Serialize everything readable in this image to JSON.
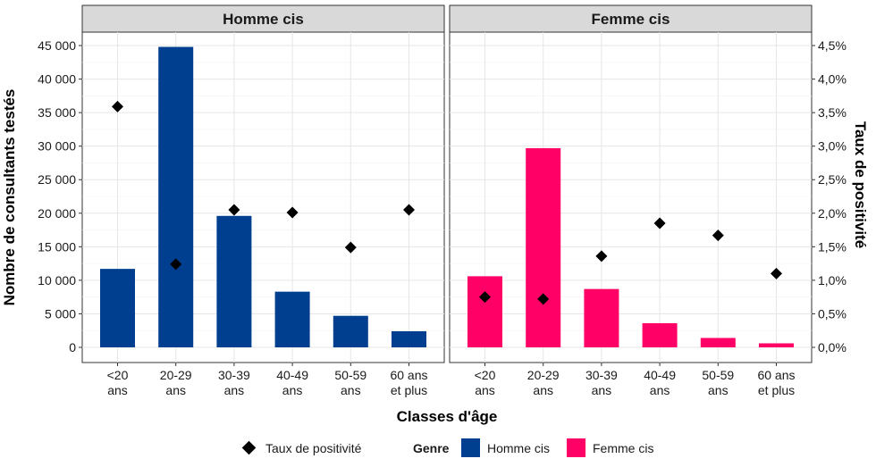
{
  "chart_data": {
    "type": "bar",
    "xlabel": "Classes d'âge",
    "ylabel": "Nombre de consultants testés",
    "y2label": "Taux de positivité",
    "categories": [
      [
        "<20",
        "ans"
      ],
      [
        "20-29",
        "ans"
      ],
      [
        "30-39",
        "ans"
      ],
      [
        "40-49",
        "ans"
      ],
      [
        "50-59",
        "ans"
      ],
      [
        "60 ans",
        "et plus"
      ]
    ],
    "ylim": [
      0,
      47000
    ],
    "yticks": [
      0,
      5000,
      10000,
      15000,
      20000,
      25000,
      30000,
      35000,
      40000,
      45000
    ],
    "ytick_labels": [
      "0",
      "5 000",
      "10 000",
      "15 000",
      "20 000",
      "25 000",
      "30 000",
      "35 000",
      "40 000",
      "45 000"
    ],
    "y2lim": [
      0,
      4.7
    ],
    "y2ticks": [
      0,
      0.5,
      1.0,
      1.5,
      2.0,
      2.5,
      3.0,
      3.5,
      4.0,
      4.5
    ],
    "y2tick_labels": [
      "0,0%",
      "0,5%",
      "1,0%",
      "1,5%",
      "2,0%",
      "2,5%",
      "3,0%",
      "3,5%",
      "4,0%",
      "4,5%"
    ],
    "grid": true,
    "panels": [
      {
        "name": "Homme cis",
        "color": "#003f8f",
        "bar_values": [
          11700,
          44800,
          19600,
          8300,
          4700,
          2400
        ],
        "rate_values": [
          3.59,
          1.24,
          2.05,
          2.01,
          1.49,
          2.05
        ]
      },
      {
        "name": "Femme cis",
        "color": "#ff0066",
        "bar_values": [
          10600,
          29700,
          8700,
          3600,
          1400,
          600
        ],
        "rate_values": [
          0.75,
          0.72,
          1.36,
          1.85,
          1.67,
          1.1
        ]
      }
    ],
    "legend": {
      "position": "bottom",
      "marker_label": "Taux de positivité",
      "title": "Genre",
      "entries": [
        {
          "label": "Homme cis",
          "color": "#003f8f"
        },
        {
          "label": "Femme cis",
          "color": "#ff0066"
        }
      ]
    }
  }
}
